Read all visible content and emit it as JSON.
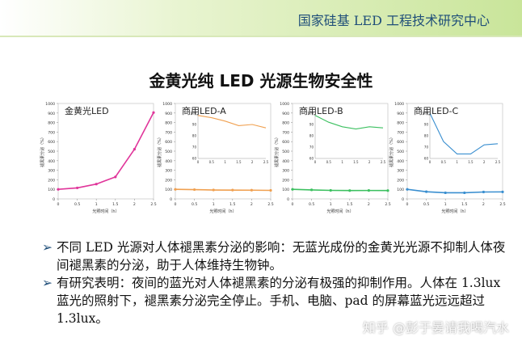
{
  "header": {
    "title": "国家硅基 LED 工程技术研究中心"
  },
  "main_title": "金黄光纯 LED 光源生物安全性",
  "chart_data": [
    {
      "type": "line",
      "title": "金黄光LED",
      "xlabel": "光照时间（h）",
      "ylabel": "褪黑素分泌（%）",
      "x": [
        0,
        0.5,
        1,
        1.5,
        2,
        2.5
      ],
      "xlim": [
        0,
        2.5
      ],
      "ylim": [
        0,
        1000
      ],
      "xticks": [
        "0",
        "0.5",
        "1",
        "1.5",
        "2",
        "2.5"
      ],
      "yticks": [
        "0",
        "100",
        "200",
        "300",
        "400",
        "500",
        "600",
        "700",
        "800",
        "900",
        "1000"
      ],
      "series": [
        {
          "values": [
            100,
            115,
            155,
            230,
            520,
            905
          ],
          "color": "#e0359a"
        }
      ],
      "inset": null
    },
    {
      "type": "line",
      "title": "商用LED-A",
      "xlabel": "光照时间（h）",
      "ylabel": "褪黑素分泌（%）",
      "x": [
        0,
        0.5,
        1,
        1.5,
        2,
        2.5
      ],
      "xlim": [
        0,
        2.5
      ],
      "ylim": [
        0,
        1000
      ],
      "xticks": [
        "0",
        "0.5",
        "1",
        "1.5",
        "2",
        "2.5"
      ],
      "yticks": [
        "0",
        "100",
        "200",
        "300",
        "400",
        "500",
        "600",
        "700",
        "800",
        "900",
        "1000"
      ],
      "series": [
        {
          "values": [
            100,
            97,
            93,
            92,
            91,
            89
          ],
          "color": "#f0a050"
        }
      ],
      "inset": {
        "x": [
          0,
          0.5,
          1,
          1.5,
          2,
          2.5
        ],
        "values": [
          98,
          96,
          93,
          89,
          90,
          87
        ],
        "ylim": [
          60,
          100
        ],
        "yticks": [
          "60",
          "70",
          "80",
          "90",
          "100"
        ],
        "xticks": [
          "0",
          "0.5",
          "1",
          "1.5",
          "2",
          "2.5"
        ]
      }
    },
    {
      "type": "line",
      "title": "商用LED-B",
      "xlabel": "光照时间（h）",
      "ylabel": "褪黑素分泌（%）",
      "x": [
        0,
        0.5,
        1,
        1.5,
        2,
        2.5
      ],
      "xlim": [
        0,
        2.5
      ],
      "ylim": [
        0,
        1000
      ],
      "xticks": [
        "0",
        "0.5",
        "1",
        "1.5",
        "2",
        "2.5"
      ],
      "yticks": [
        "0",
        "100",
        "200",
        "300",
        "400",
        "500",
        "600",
        "700",
        "800",
        "900",
        "1000"
      ],
      "series": [
        {
          "values": [
            100,
            94,
            89,
            87,
            88,
            87
          ],
          "color": "#3cc060"
        }
      ],
      "inset": {
        "x": [
          0,
          0.5,
          1,
          1.5,
          2,
          2.5
        ],
        "values": [
          98,
          92,
          88,
          86,
          88,
          87
        ],
        "ylim": [
          60,
          100
        ],
        "yticks": [
          "60",
          "70",
          "80",
          "90",
          "100"
        ],
        "xticks": [
          "0",
          "0.5",
          "1",
          "1.5",
          "2",
          "2.5"
        ]
      }
    },
    {
      "type": "line",
      "title": "商用LED-C",
      "xlabel": "光照时间（h）",
      "ylabel": "褪黑素分泌（%）",
      "x": [
        0,
        0.5,
        1,
        1.5,
        2,
        2.5
      ],
      "xlim": [
        0,
        2.5
      ],
      "ylim": [
        0,
        1000
      ],
      "xticks": [
        "0",
        "0.5",
        "1",
        "1.5",
        "2",
        "2.5"
      ],
      "yticks": [
        "0",
        "100",
        "200",
        "300",
        "400",
        "500",
        "600",
        "700",
        "800",
        "900",
        "1000"
      ],
      "series": [
        {
          "values": [
            100,
            75,
            64,
            64,
            72,
            73
          ],
          "color": "#3a8fd0"
        }
      ],
      "inset": {
        "x": [
          0,
          0.5,
          1,
          1.5,
          2,
          2.5
        ],
        "values": [
          100,
          75,
          64,
          64,
          72,
          73
        ],
        "ylim": [
          60,
          100
        ],
        "yticks": [
          "60",
          "70",
          "80",
          "90",
          "100"
        ],
        "xticks": [
          "0",
          "0.5",
          "1",
          "1.5",
          "2",
          "2.5"
        ]
      }
    }
  ],
  "bullets": [
    {
      "icon": "arrow-bullet-icon",
      "text": "不同 LED 光源对人体褪黑素分泌的影响：无蓝光成份的金黄光光源不抑制人体夜间褪黑素的分泌，助于人体维持生物钟。"
    },
    {
      "icon": "arrow-bullet-icon",
      "text": "有研究表明：夜间的蓝光对人体褪黑素的分泌有极强的抑制作用。人体在 1.3lux 蓝光的照射下，褪黑素分泌完全停止。手机、电脑、pad 的屏幕蓝光远远超过 1.3lux。"
    }
  ],
  "watermark": "知乎 @彭于晏请我喝汽水"
}
